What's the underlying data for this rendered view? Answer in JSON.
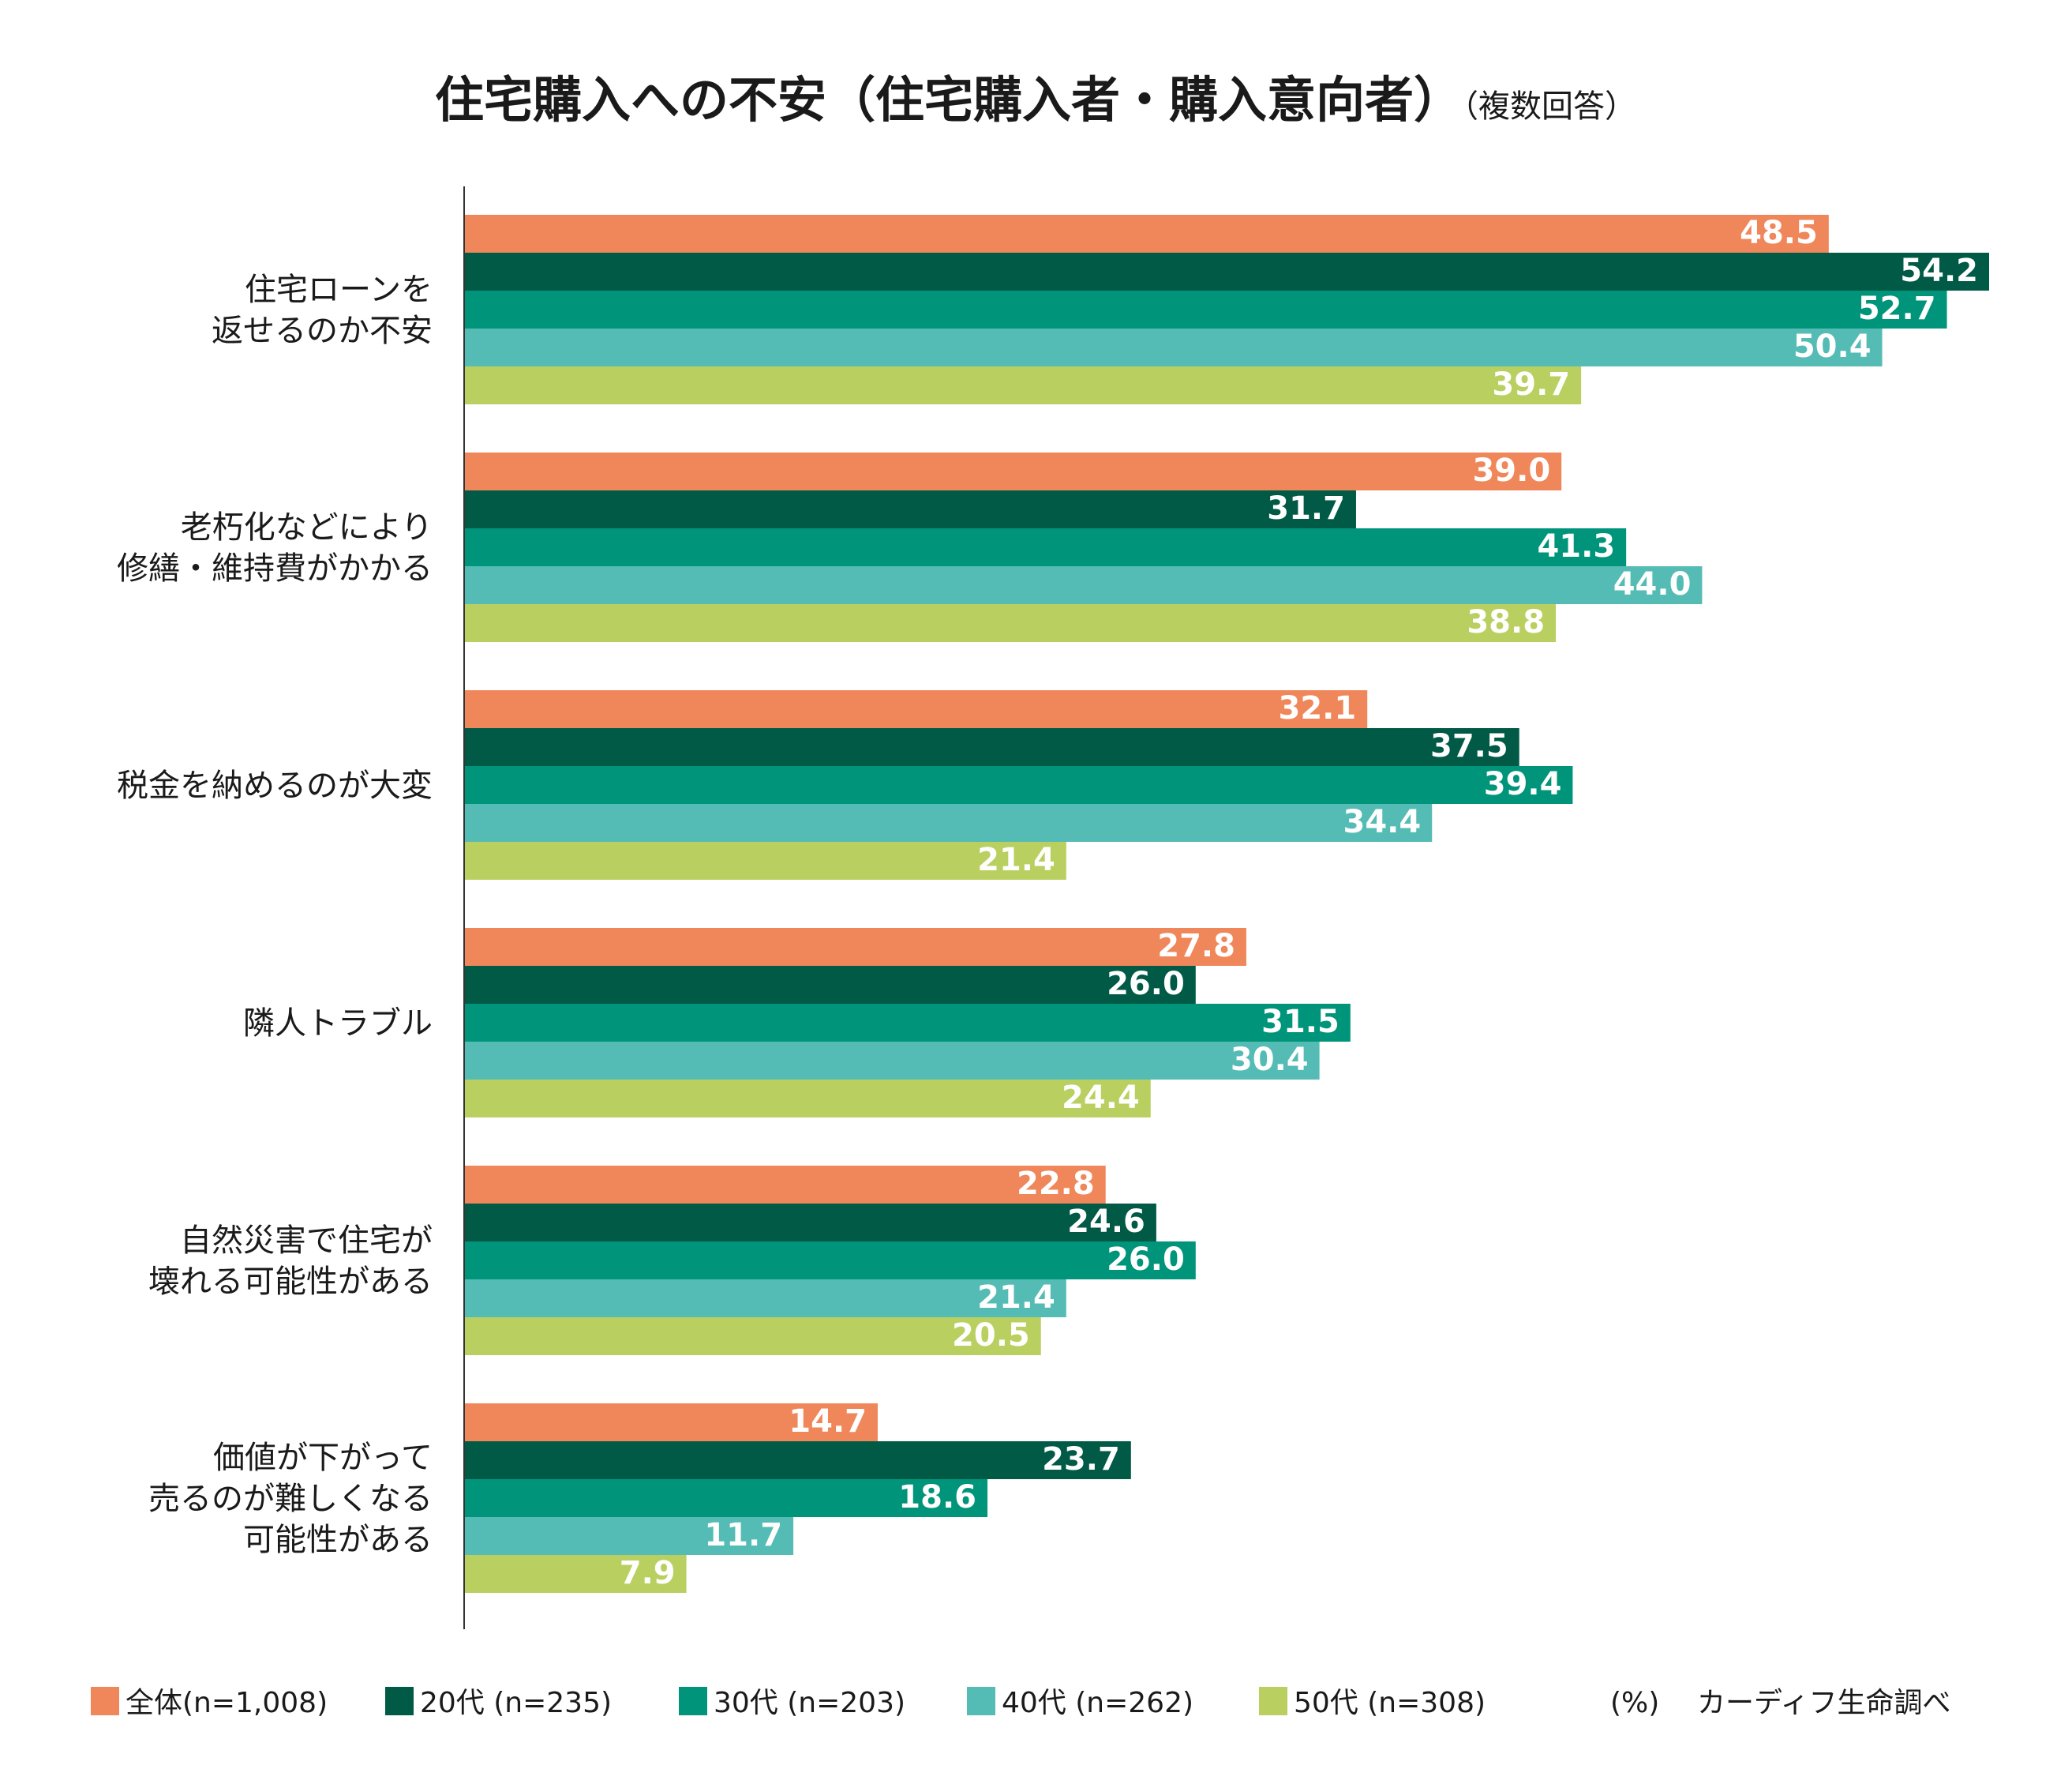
{
  "chart_data": {
    "type": "bar",
    "orientation": "horizontal",
    "title": "住宅購入への不安（住宅購入者・購入意向者）",
    "subtitle": "（複数回答）",
    "unit_note": "(%)",
    "source": "カーディフ生命調べ",
    "categories": [
      [
        "住宅ローンを",
        "返せるのか不安"
      ],
      [
        "老朽化などにより",
        "修繕・維持費がかかる"
      ],
      [
        "税金を納めるのが大変"
      ],
      [
        "隣人トラブル"
      ],
      [
        "自然災害で住宅が",
        "壊れる可能性がある"
      ],
      [
        "価値が下がって",
        "売るのが難しくなる",
        "可能性がある"
      ]
    ],
    "series": [
      {
        "name": "全体(n=1,008)",
        "color": "#F0875A",
        "values": [
          48.5,
          39.0,
          32.1,
          27.8,
          22.8,
          14.7
        ],
        "labels": [
          "48.5",
          "39.0",
          "32.1",
          "27.8",
          "22.8",
          "14.7"
        ]
      },
      {
        "name": "20代 (n=235)",
        "color": "#005A46",
        "values": [
          54.2,
          31.7,
          37.5,
          26.0,
          24.6,
          23.7
        ],
        "labels": [
          "54.2",
          "31.7",
          "37.5",
          "26.0",
          "24.6",
          "23.7"
        ]
      },
      {
        "name": "30代 (n=203)",
        "color": "#00957A",
        "values": [
          52.7,
          41.3,
          39.4,
          31.5,
          26.0,
          18.6
        ],
        "labels": [
          "52.7",
          "41.3",
          "39.4",
          "31.5",
          "26.0",
          "18.6"
        ]
      },
      {
        "name": "40代 (n=262)",
        "color": "#55BCB5",
        "values": [
          50.4,
          44.0,
          34.4,
          30.4,
          21.4,
          11.7
        ],
        "labels": [
          "50.4",
          "44.0",
          "34.4",
          "30.4",
          "21.4",
          "11.7"
        ]
      },
      {
        "name": "50代 (n=308)",
        "color": "#B9D061",
        "values": [
          39.7,
          38.8,
          21.4,
          24.4,
          20.5,
          7.9
        ],
        "labels": [
          "39.7",
          "38.8",
          "21.4",
          "24.4",
          "20.5",
          "7.9"
        ]
      }
    ],
    "xlim": [
      0,
      54.2
    ],
    "grid": false,
    "legend_position": "bottom"
  }
}
